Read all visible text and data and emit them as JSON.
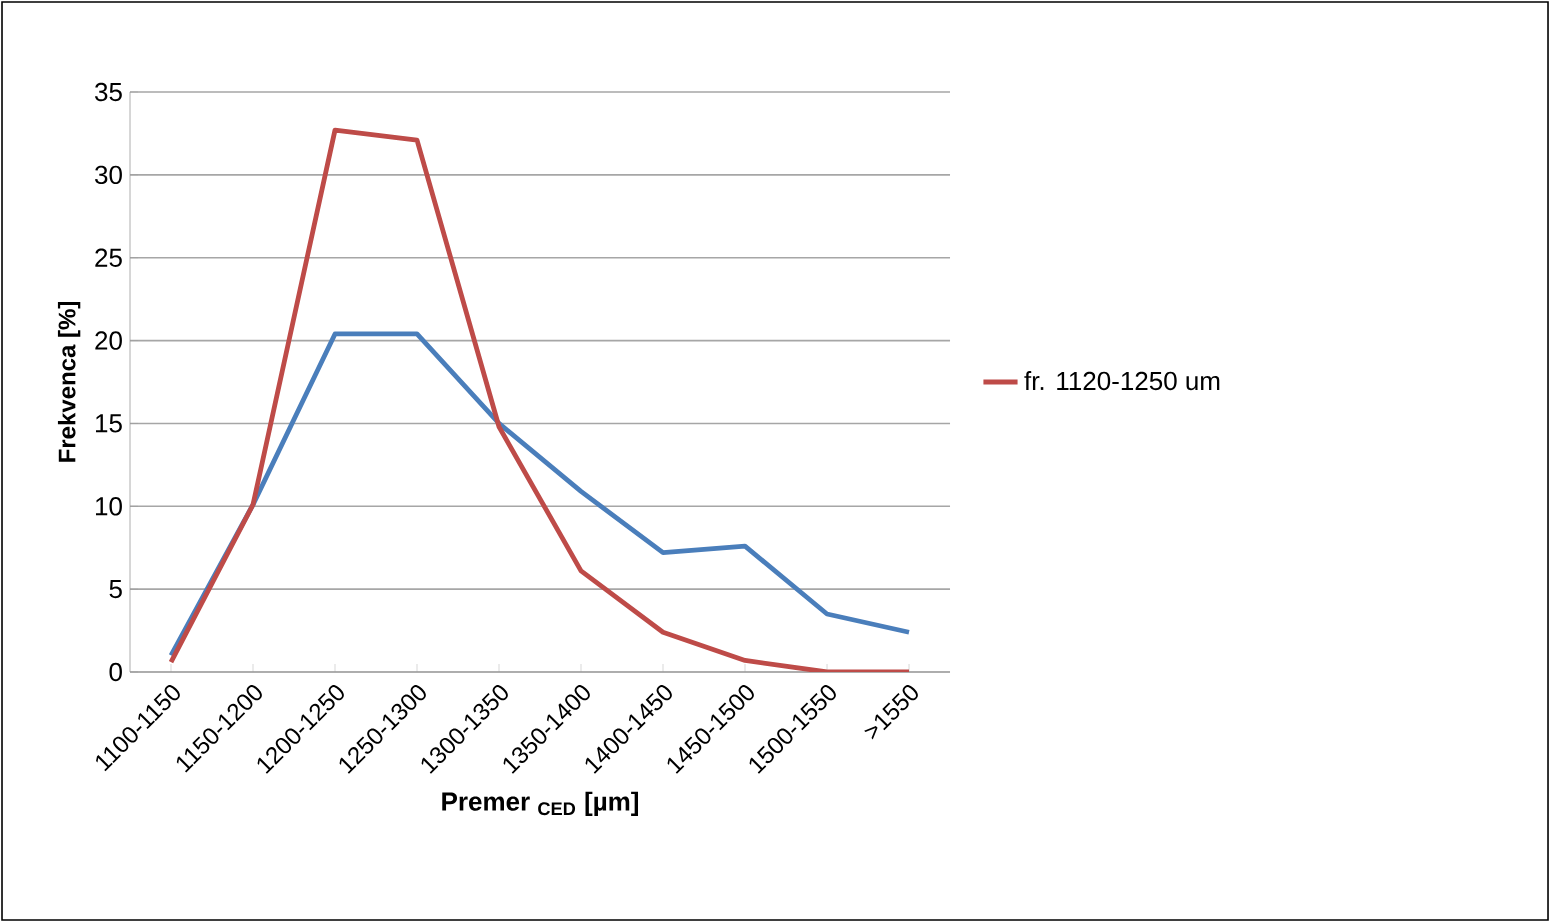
{
  "chart_data": {
    "type": "line",
    "xlabel": "Premer $_{CED}$ [µm]",
    "ylabel": "Frekvenca [%]",
    "categories": [
      "1100-1150",
      "1150-1200",
      "1200-1250",
      "1250-1300",
      "1300-1350",
      "1350-1400",
      "1400-1450",
      "1450-1500",
      "1500-1550",
      ">1550"
    ],
    "series": [
      {
        "color": "#4a7ebb",
        "values": [
          1.0,
          10.1,
          20.4,
          20.4,
          15.0,
          10.9,
          7.2,
          7.6,
          3.5,
          2.4
        ]
      },
      {
        "name": "fr. 1120-1250 um",
        "color": "#be4b48",
        "values": [
          0.6,
          10.1,
          32.7,
          32.1,
          14.8,
          6.1,
          2.4,
          0.7,
          0.0,
          0.0
        ]
      }
    ],
    "ylim": [
      0,
      35
    ],
    "yticks": [
      0,
      5,
      10,
      15,
      20,
      25,
      30,
      35
    ],
    "grid": "y",
    "legend": "right",
    "marker": "none",
    "line_style": "solid"
  }
}
